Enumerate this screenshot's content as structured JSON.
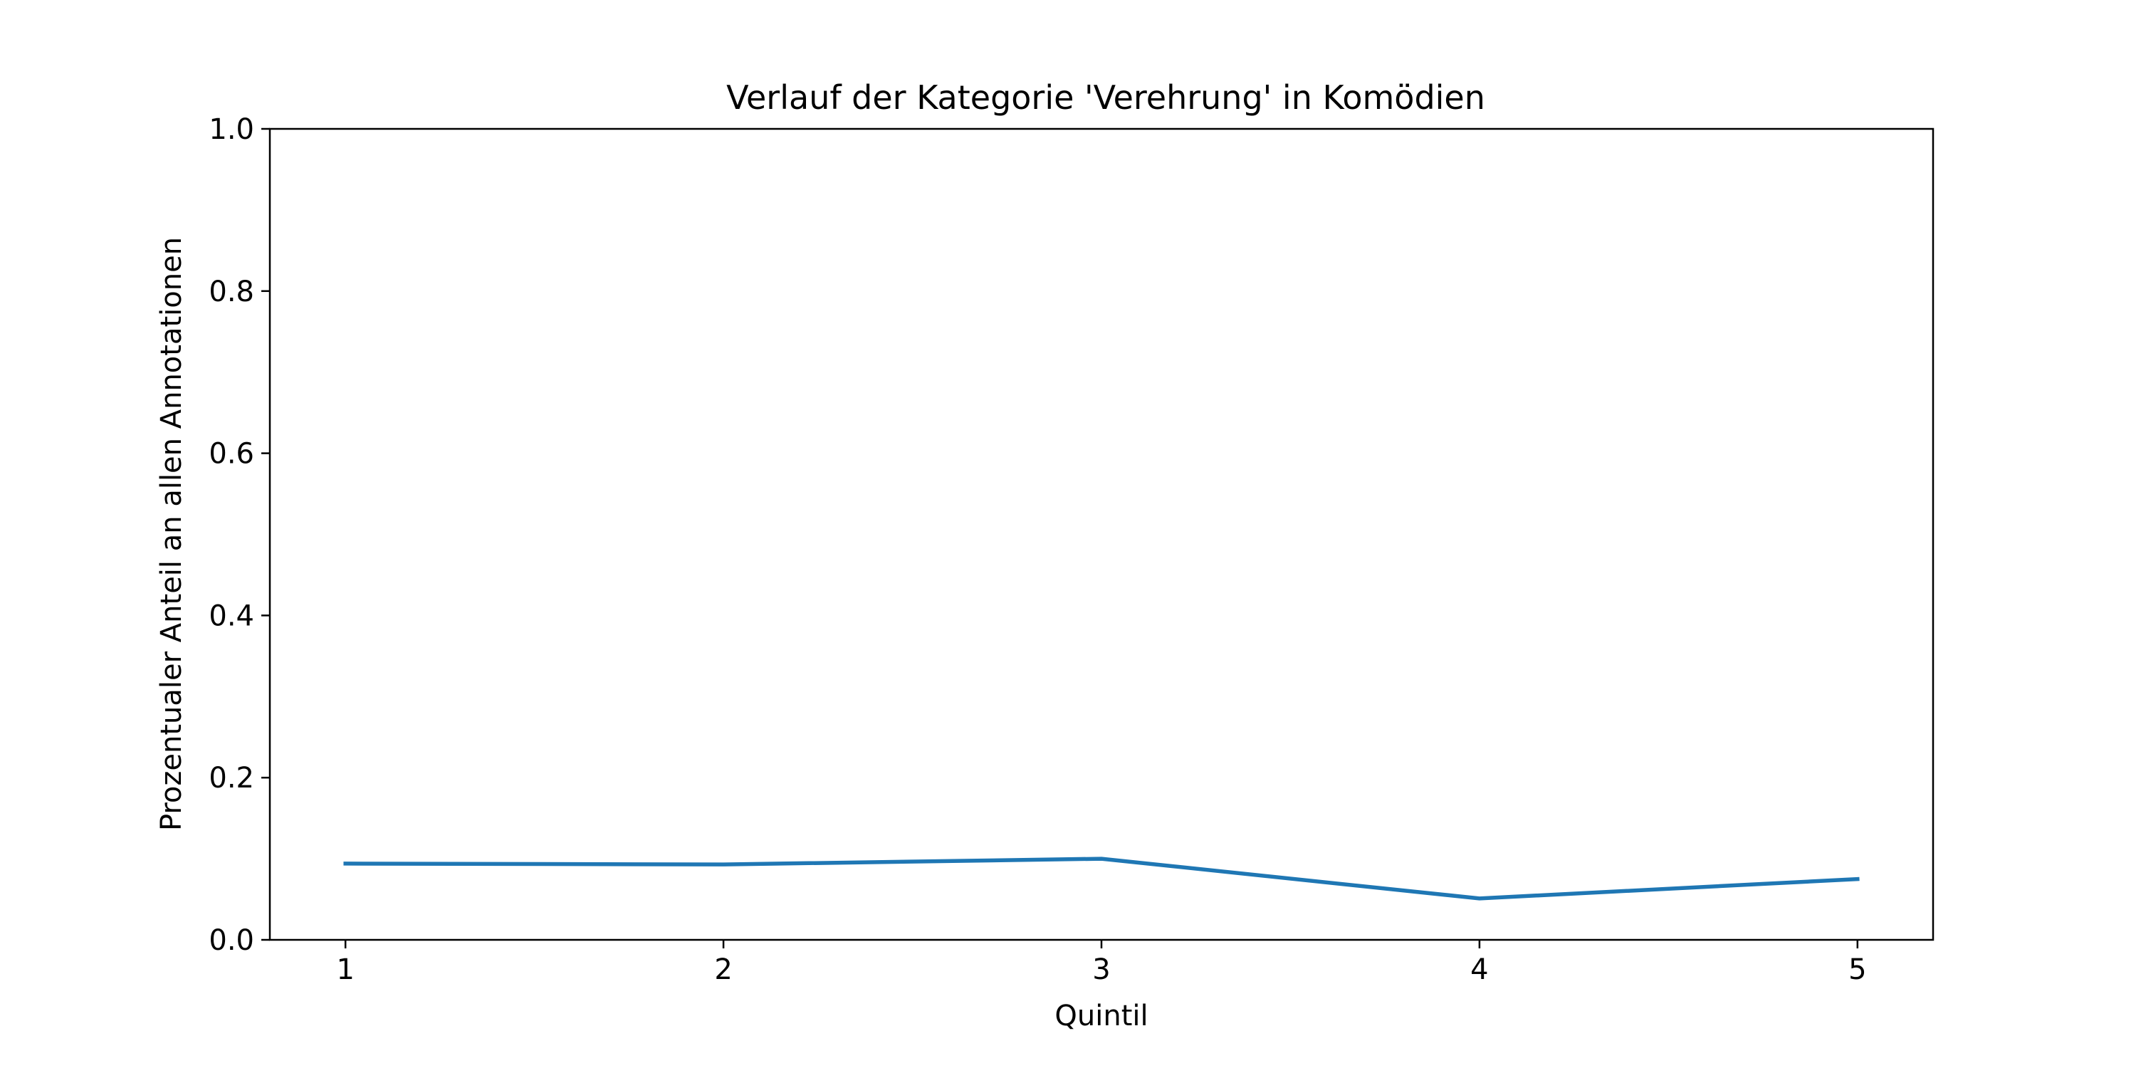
{
  "chart_data": {
    "type": "line",
    "title": "Verlauf der Kategorie 'Verehrung' in Komödien",
    "xlabel": "Quintil",
    "ylabel": "Prozentualer Anteil an allen Annotationen",
    "x": [
      1,
      2,
      3,
      4,
      5
    ],
    "x_tick_labels": [
      "1",
      "2",
      "3",
      "4",
      "5"
    ],
    "xlim": [
      0.8,
      5.2
    ],
    "ylim": [
      0.0,
      1.0
    ],
    "y_ticks": [
      0.0,
      0.2,
      0.4,
      0.6,
      0.8,
      1.0
    ],
    "y_tick_labels": [
      "0.0",
      "0.2",
      "0.4",
      "0.6",
      "0.8",
      "1.0"
    ],
    "grid": false,
    "series": [
      {
        "values": [
          0.094,
          0.093,
          0.1,
          0.051,
          0.075
        ],
        "color": "#1f77b4"
      }
    ]
  }
}
